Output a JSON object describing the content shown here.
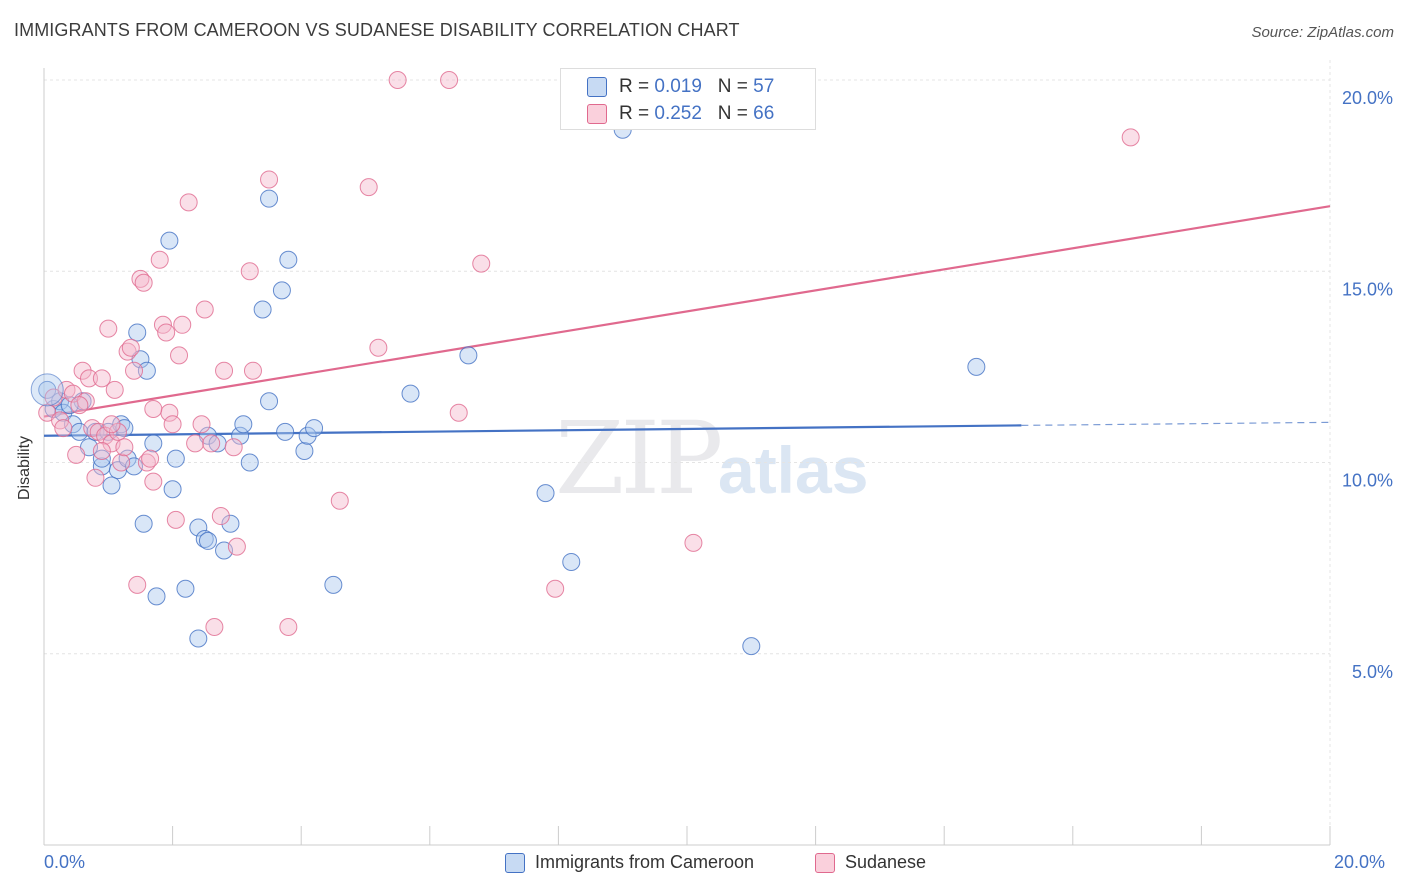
{
  "title": "IMMIGRANTS FROM CAMEROON VS SUDANESE DISABILITY CORRELATION CHART",
  "source": "Source: ZipAtlas.com",
  "watermark_zip": "ZIP",
  "watermark_atlas": "atlas",
  "chart_data": {
    "type": "scatter",
    "ylabel": "Disability",
    "xlim": [
      0,
      20
    ],
    "ylim": [
      0,
      20.5
    ],
    "x_tick_labels": [
      "0.0%",
      "20.0%"
    ],
    "y_ticks": [
      5,
      10,
      15,
      20
    ],
    "y_tick_labels": [
      "5.0%",
      "10.0%",
      "15.0%",
      "20.0%"
    ],
    "grid": true,
    "legend_position": "top-center",
    "series": [
      {
        "name": "Immigrants from Cameroon",
        "color": "#4472c4",
        "fill": "#aac8ee",
        "R": "0.019",
        "N": "57",
        "trend": {
          "x0": 0,
          "y0": 10.7,
          "x1": 15.2,
          "y1": 10.97,
          "dash_to_x": 20,
          "dash_to_y": 11.05
        },
        "points": [
          [
            0.05,
            11.9
          ],
          [
            0.15,
            11.4
          ],
          [
            0.25,
            11.6
          ],
          [
            0.3,
            11.3
          ],
          [
            0.45,
            11.0
          ],
          [
            0.55,
            10.8
          ],
          [
            0.6,
            11.6
          ],
          [
            0.4,
            11.5
          ],
          [
            0.7,
            10.4
          ],
          [
            0.8,
            10.8
          ],
          [
            0.9,
            9.9
          ],
          [
            1.15,
            9.8
          ],
          [
            0.9,
            10.1
          ],
          [
            1.0,
            10.8
          ],
          [
            1.2,
            11.0
          ],
          [
            1.25,
            10.9
          ],
          [
            1.3,
            10.1
          ],
          [
            1.4,
            9.9
          ],
          [
            1.5,
            12.7
          ],
          [
            1.6,
            12.4
          ],
          [
            1.45,
            13.4
          ],
          [
            1.55,
            8.4
          ],
          [
            1.7,
            10.5
          ],
          [
            1.75,
            6.5
          ],
          [
            1.95,
            15.8
          ],
          [
            2.0,
            9.3
          ],
          [
            2.05,
            10.1
          ],
          [
            2.2,
            6.7
          ],
          [
            2.4,
            5.4
          ],
          [
            2.4,
            8.3
          ],
          [
            2.5,
            8.0
          ],
          [
            2.55,
            10.7
          ],
          [
            2.7,
            10.5
          ],
          [
            2.8,
            7.7
          ],
          [
            2.9,
            8.4
          ],
          [
            3.05,
            10.7
          ],
          [
            3.1,
            11.0
          ],
          [
            3.2,
            10.0
          ],
          [
            3.4,
            14.0
          ],
          [
            3.5,
            11.6
          ],
          [
            3.5,
            16.9
          ],
          [
            3.7,
            14.5
          ],
          [
            3.75,
            10.8
          ],
          [
            3.8,
            15.3
          ],
          [
            4.05,
            10.3
          ],
          [
            4.1,
            10.7
          ],
          [
            4.2,
            10.9
          ],
          [
            4.5,
            6.8
          ],
          [
            5.7,
            11.8
          ],
          [
            6.6,
            12.8
          ],
          [
            7.8,
            9.2
          ],
          [
            8.2,
            7.4
          ],
          [
            9.0,
            18.7
          ],
          [
            11.0,
            5.2
          ],
          [
            14.5,
            12.5
          ],
          [
            1.05,
            9.4
          ],
          [
            2.55,
            7.95
          ]
        ]
      },
      {
        "name": "Sudanese",
        "color": "#e0698e",
        "fill": "#f5b8cb",
        "R": "0.252",
        "N": "66",
        "trend": {
          "x0": 0,
          "y0": 11.2,
          "x1": 20,
          "y1": 16.7
        },
        "points": [
          [
            0.05,
            11.3
          ],
          [
            0.15,
            11.7
          ],
          [
            0.25,
            11.1
          ],
          [
            0.35,
            11.9
          ],
          [
            0.45,
            11.8
          ],
          [
            0.5,
            10.2
          ],
          [
            0.6,
            12.4
          ],
          [
            0.65,
            11.6
          ],
          [
            0.7,
            12.2
          ],
          [
            0.75,
            10.9
          ],
          [
            0.8,
            9.6
          ],
          [
            0.85,
            10.8
          ],
          [
            0.9,
            12.2
          ],
          [
            0.95,
            10.7
          ],
          [
            1.0,
            13.5
          ],
          [
            1.05,
            10.5
          ],
          [
            1.1,
            11.9
          ],
          [
            1.15,
            10.8
          ],
          [
            1.2,
            10.0
          ],
          [
            1.25,
            10.4
          ],
          [
            1.3,
            12.9
          ],
          [
            1.35,
            13.0
          ],
          [
            1.4,
            12.4
          ],
          [
            1.45,
            6.8
          ],
          [
            1.5,
            14.8
          ],
          [
            1.55,
            14.7
          ],
          [
            1.6,
            10.0
          ],
          [
            1.65,
            10.1
          ],
          [
            1.7,
            9.5
          ],
          [
            1.8,
            15.3
          ],
          [
            1.85,
            13.6
          ],
          [
            1.9,
            13.4
          ],
          [
            1.95,
            11.3
          ],
          [
            2.05,
            8.5
          ],
          [
            2.1,
            12.8
          ],
          [
            2.15,
            13.6
          ],
          [
            2.25,
            16.8
          ],
          [
            2.35,
            10.5
          ],
          [
            2.5,
            14.0
          ],
          [
            2.6,
            10.5
          ],
          [
            2.65,
            5.7
          ],
          [
            2.75,
            8.6
          ],
          [
            2.8,
            12.4
          ],
          [
            2.95,
            10.4
          ],
          [
            3.0,
            7.8
          ],
          [
            3.2,
            15.0
          ],
          [
            3.25,
            12.4
          ],
          [
            3.5,
            17.4
          ],
          [
            3.8,
            5.7
          ],
          [
            4.6,
            9.0
          ],
          [
            5.05,
            17.2
          ],
          [
            5.2,
            13.0
          ],
          [
            5.5,
            20.0
          ],
          [
            6.3,
            20.0
          ],
          [
            6.45,
            11.3
          ],
          [
            6.8,
            15.2
          ],
          [
            7.95,
            6.7
          ],
          [
            10.1,
            7.9
          ],
          [
            16.9,
            18.5
          ],
          [
            0.3,
            10.9
          ],
          [
            1.05,
            11.0
          ],
          [
            2.0,
            11.0
          ],
          [
            0.55,
            11.5
          ],
          [
            0.9,
            10.3
          ],
          [
            1.7,
            11.4
          ],
          [
            2.45,
            11.0
          ]
        ]
      }
    ]
  }
}
